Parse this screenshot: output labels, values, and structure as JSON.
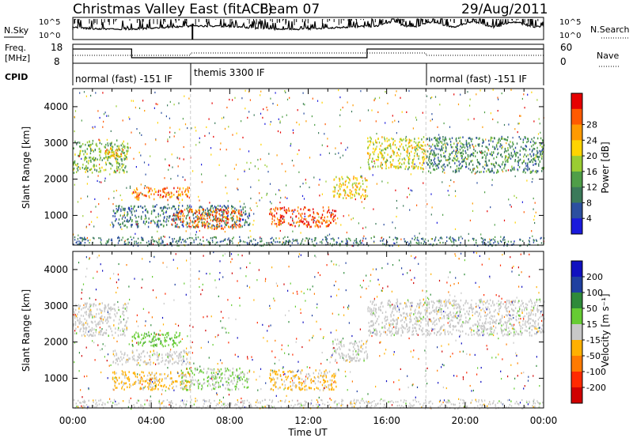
{
  "header": {
    "title": "Christmas Valley East (fitACF)",
    "beam": "Beam 07",
    "date": "29/Aug/2011"
  },
  "top_panels": {
    "nsky_label": "N.Sky",
    "nsearch_label": "N.Search",
    "noise_ticks": [
      "10^5",
      "10^0"
    ],
    "freq_label_1": "Freq.",
    "freq_label_2": "[MHz]",
    "freq_ticks": [
      "18",
      "8"
    ],
    "nave_label": "Nave",
    "nave_ticks": [
      "60",
      "0"
    ],
    "cpid_label": "CPID",
    "cpid_segments": [
      {
        "label": "normal (fast) -151 IF",
        "start_hour": 0,
        "end_hour": 6
      },
      {
        "label": "themis 3300 IF",
        "start_hour": 6,
        "end_hour": 18
      },
      {
        "label": "normal (fast) -151 IF",
        "start_hour": 18,
        "end_hour": 24
      }
    ]
  },
  "axes": {
    "ylabel": "Slant Range [km]",
    "xlabel": "Time UT",
    "y_ticks": [
      "1000",
      "2000",
      "3000",
      "4000"
    ],
    "x_ticks": [
      "00:00",
      "04:00",
      "08:00",
      "12:00",
      "16:00",
      "20:00",
      "00:00"
    ]
  },
  "power_scale": {
    "label": "Power [dB]",
    "ticks": [
      "4",
      "8",
      "12",
      "16",
      "20",
      "24",
      "28"
    ],
    "colors": [
      "#1a1adc",
      "#2c4fa0",
      "#3b7a5a",
      "#4f9e48",
      "#9acd32",
      "#ffd400",
      "#ff9a00",
      "#ff5a00",
      "#e60000"
    ]
  },
  "velocity_scale": {
    "label": "Velocity [m s⁻¹]",
    "ticks": [
      "200",
      "100",
      "50",
      "15",
      "-15",
      "-50",
      "-100",
      "-200"
    ],
    "colors": [
      "#1010c0",
      "#2040a0",
      "#2f8a3a",
      "#66cc33",
      "#c8c8c8",
      "#ffb000",
      "#ff7a00",
      "#ff2a00",
      "#d00000"
    ]
  },
  "chart_data": {
    "type": "heatmap",
    "title": "Christmas Valley East (fitACF) Beam 07",
    "xlabel": "Time UT",
    "ylabel": "Slant Range [km]",
    "x_range_hours": [
      0,
      24
    ],
    "y_range_km": [
      180,
      4500
    ],
    "panels": [
      {
        "name": "Power",
        "unit": "dB",
        "colorbar_range": [
          0,
          32
        ],
        "echo_regions": [
          {
            "t0": 0.0,
            "t1": 2.8,
            "r0": 2200,
            "r1": 3100,
            "value": 14
          },
          {
            "t0": 1.6,
            "t1": 2.6,
            "r0": 2600,
            "r1": 2900,
            "value": 22
          },
          {
            "t0": 3.0,
            "t1": 6.0,
            "r0": 1450,
            "r1": 1800,
            "value": 25
          },
          {
            "t0": 2.0,
            "t1": 9.0,
            "r0": 700,
            "r1": 1300,
            "value": 8
          },
          {
            "t0": 5.0,
            "t1": 8.6,
            "r0": 650,
            "r1": 1200,
            "value": 26
          },
          {
            "t0": 10.0,
            "t1": 13.4,
            "r0": 700,
            "r1": 1250,
            "value": 27
          },
          {
            "t0": 13.2,
            "t1": 15.0,
            "r0": 1500,
            "r1": 2100,
            "value": 20
          },
          {
            "t0": 15.0,
            "t1": 18.0,
            "r0": 2300,
            "r1": 3200,
            "value": 18
          },
          {
            "t0": 18.0,
            "t1": 24.0,
            "r0": 2200,
            "r1": 3200,
            "value": 10
          }
        ]
      },
      {
        "name": "Velocity",
        "unit": "m s-1",
        "colorbar_range": [
          -250,
          250
        ],
        "echo_regions": [
          {
            "t0": 0.0,
            "t1": 2.8,
            "r0": 2200,
            "r1": 3100,
            "value": 0
          },
          {
            "t0": 3.0,
            "t1": 5.5,
            "r0": 1900,
            "r1": 2300,
            "value": 60
          },
          {
            "t0": 2.0,
            "t1": 6.0,
            "r0": 1400,
            "r1": 1800,
            "value": 0
          },
          {
            "t0": 2.0,
            "t1": 6.0,
            "r0": 700,
            "r1": 1200,
            "value": -40
          },
          {
            "t0": 5.5,
            "t1": 9.0,
            "r0": 700,
            "r1": 1300,
            "value": 30
          },
          {
            "t0": 10.0,
            "t1": 13.4,
            "r0": 700,
            "r1": 1250,
            "value": -40
          },
          {
            "t0": 13.2,
            "t1": 15.0,
            "r0": 1500,
            "r1": 2100,
            "value": 0
          },
          {
            "t0": 15.0,
            "t1": 24.0,
            "r0": 2200,
            "r1": 3200,
            "value": 0
          }
        ]
      }
    ]
  }
}
